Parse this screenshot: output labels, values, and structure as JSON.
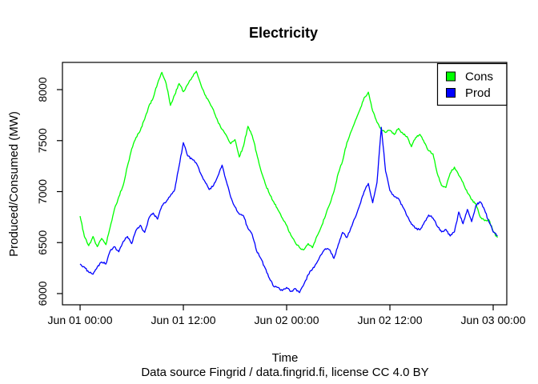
{
  "chart_data": {
    "type": "line",
    "title": "Electricity",
    "xlabel": "Time",
    "ylabel": "Produced/Consumed (MW)",
    "caption": "Data source Fingrid / data.fingrid.fi, license CC 4.0 BY",
    "grid": false,
    "legend_position": "top-right",
    "background": "#ffffff",
    "axis_color": "#000000",
    "x_ticks": [
      {
        "hour": 0,
        "label": "Jun 01 00:00"
      },
      {
        "hour": 12,
        "label": "Jun 01 12:00"
      },
      {
        "hour": 24,
        "label": "Jun 02 00:00"
      },
      {
        "hour": 36,
        "label": "Jun 02 12:00"
      },
      {
        "hour": 48,
        "label": "Jun 03 00:00"
      }
    ],
    "y_ticks": [
      6000,
      6500,
      7000,
      7500,
      8000
    ],
    "xlim_hours": [
      -2.05,
      49.58
    ],
    "ylim": [
      5890,
      8267
    ],
    "series": [
      {
        "name": "Cons",
        "color": "#00ff00",
        "start_hour": 0,
        "step_hours": 0.5,
        "values": [
          6760,
          6560,
          6470,
          6560,
          6460,
          6540,
          6480,
          6655,
          6830,
          6950,
          7060,
          7250,
          7420,
          7530,
          7600,
          7710,
          7840,
          7920,
          8060,
          8170,
          8060,
          7845,
          7950,
          8060,
          7980,
          8050,
          8120,
          8180,
          8060,
          7950,
          7880,
          7800,
          7690,
          7610,
          7550,
          7470,
          7510,
          7340,
          7450,
          7640,
          7550,
          7380,
          7210,
          7080,
          6980,
          6900,
          6820,
          6740,
          6670,
          6570,
          6500,
          6450,
          6430,
          6490,
          6450,
          6560,
          6650,
          6760,
          6875,
          7000,
          7180,
          7300,
          7480,
          7590,
          7700,
          7800,
          7920,
          7975,
          7790,
          7680,
          7610,
          7580,
          7600,
          7560,
          7620,
          7570,
          7540,
          7440,
          7530,
          7560,
          7480,
          7400,
          7370,
          7180,
          7060,
          7040,
          7180,
          7240,
          7160,
          7090,
          6990,
          6920,
          6880,
          6750,
          6715,
          6725,
          6610,
          6550
        ]
      },
      {
        "name": "Prod",
        "color": "#0000ff",
        "start_hour": 0,
        "step_hours": 0.5,
        "values": [
          6290,
          6260,
          6210,
          6190,
          6260,
          6310,
          6290,
          6420,
          6460,
          6410,
          6510,
          6560,
          6490,
          6620,
          6670,
          6600,
          6740,
          6790,
          6730,
          6860,
          6900,
          6960,
          7020,
          7250,
          7480,
          7350,
          7320,
          7280,
          7180,
          7100,
          7020,
          7060,
          7150,
          7260,
          7100,
          6945,
          6850,
          6780,
          6760,
          6640,
          6580,
          6420,
          6345,
          6250,
          6150,
          6070,
          6060,
          6030,
          6060,
          6020,
          6050,
          6010,
          6090,
          6185,
          6240,
          6300,
          6380,
          6440,
          6430,
          6345,
          6480,
          6600,
          6550,
          6650,
          6750,
          6870,
          7000,
          7080,
          6890,
          7090,
          7630,
          7200,
          7010,
          6950,
          6930,
          6850,
          6760,
          6680,
          6640,
          6625,
          6700,
          6770,
          6740,
          6660,
          6605,
          6630,
          6565,
          6605,
          6800,
          6685,
          6825,
          6705,
          6865,
          6900,
          6820,
          6705,
          6605,
          6565
        ]
      }
    ]
  }
}
